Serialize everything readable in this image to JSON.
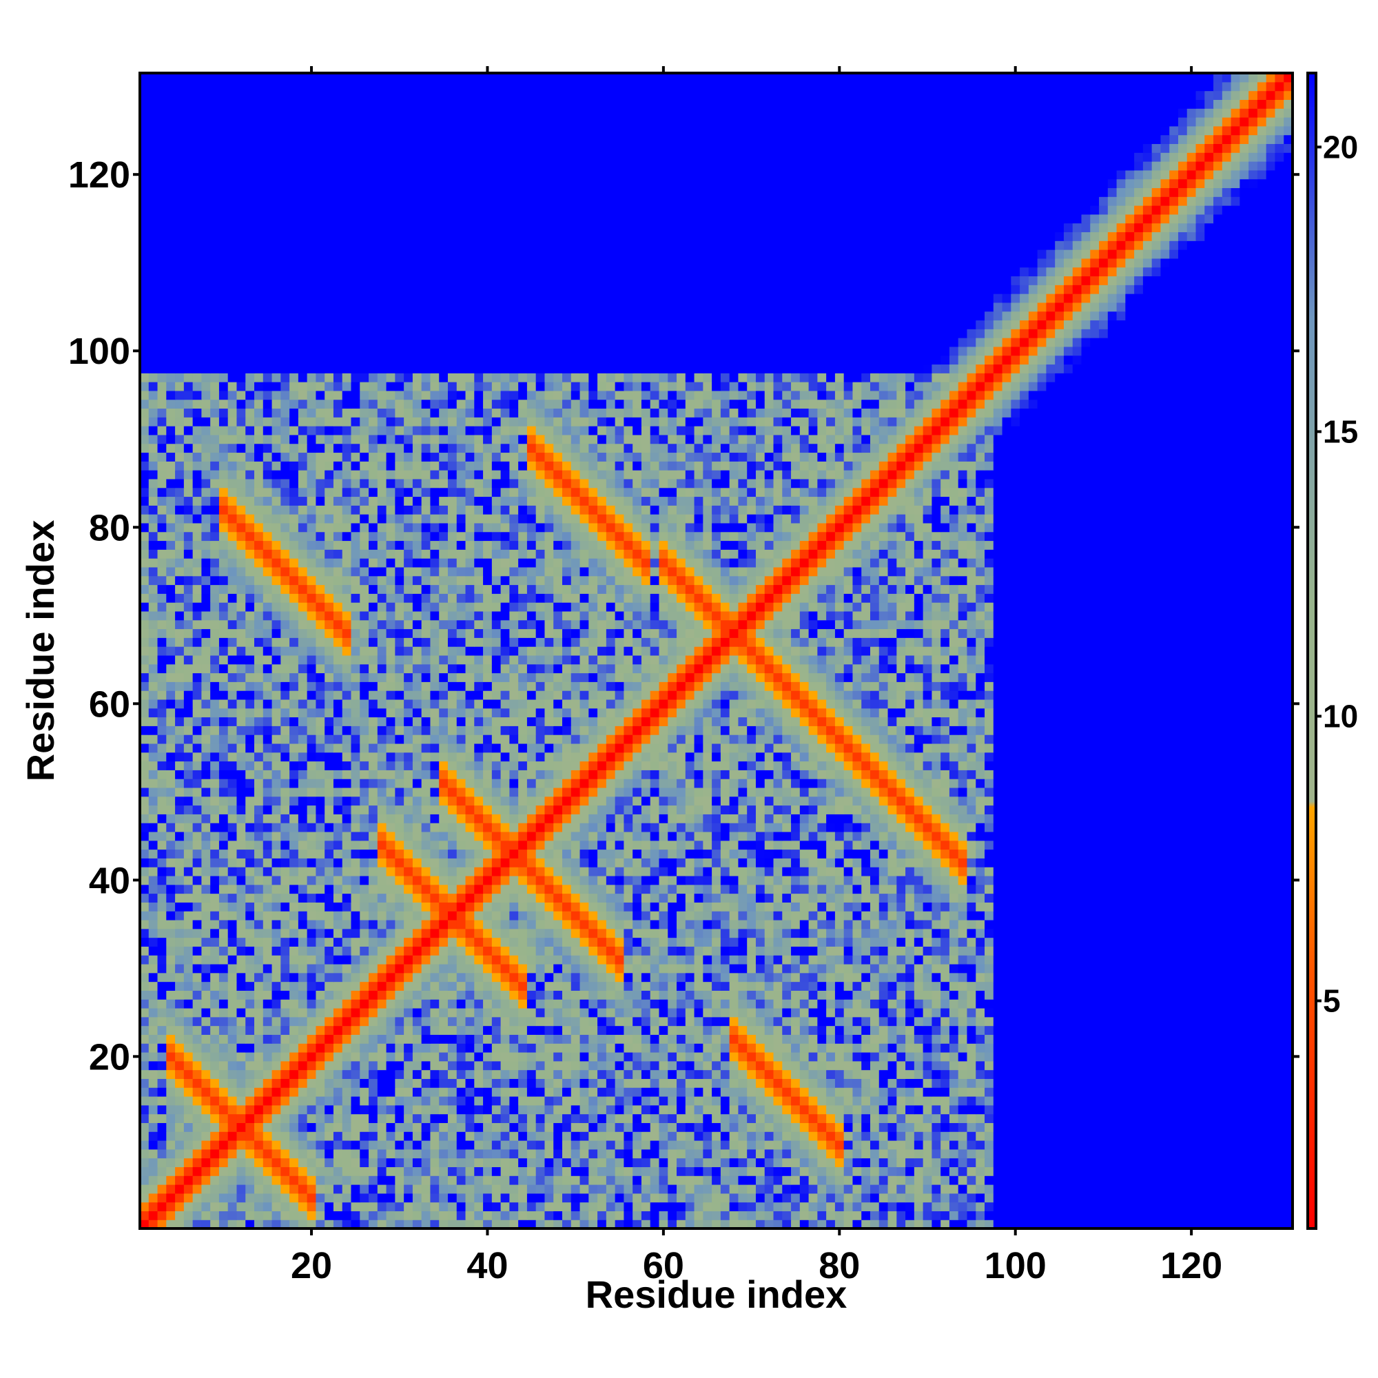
{
  "chart_data": {
    "type": "heatmap",
    "title": "",
    "xlabel": "Residue index",
    "ylabel": "Residue index",
    "xlim": [
      1,
      131
    ],
    "ylim": [
      1,
      131
    ],
    "x_ticks": [
      20,
      40,
      60,
      80,
      100,
      120
    ],
    "y_ticks": [
      20,
      40,
      60,
      80,
      100,
      120
    ],
    "colorbar": {
      "min": 1,
      "max": 21.3,
      "ticks": [
        5,
        10,
        15,
        20
      ],
      "stops": [
        {
          "value": 1.0,
          "color": "#ff0000"
        },
        {
          "value": 5.5,
          "color": "#ff5500"
        },
        {
          "value": 8.4,
          "color": "#ffa500"
        },
        {
          "value": 8.5,
          "color": "#a0b48c"
        },
        {
          "value": 12.0,
          "color": "#98b48c"
        },
        {
          "value": 17.0,
          "color": "#6e96be"
        },
        {
          "value": 21.3,
          "color": "#0000ff"
        }
      ]
    },
    "grid": false,
    "structure": {
      "description_free_values": true,
      "diagonal_contacts": {
        "i_range": [
          1,
          131
        ]
      },
      "cross_band_segments": [
        {
          "center": [
            12,
            12
          ],
          "i_range": [
            4,
            20
          ]
        },
        {
          "center": [
            36,
            36
          ],
          "i_range": [
            28,
            44
          ]
        },
        {
          "center": [
            43,
            43
          ],
          "i_range": [
            35,
            55
          ]
        },
        {
          "center": [
            68,
            68
          ],
          "i_range": [
            60,
            78
          ]
        },
        {
          "center": [
            16,
            76
          ],
          "i_range": [
            10,
            24
          ]
        },
        {
          "center": [
            73,
            17
          ],
          "i_range": [
            68,
            80
          ]
        },
        {
          "center": [
            50,
            84
          ],
          "i_range": [
            45,
            58
          ]
        },
        {
          "center": [
            86,
            50
          ],
          "i_range": [
            78,
            94
          ]
        }
      ],
      "domain_extent": {
        "x_max": 97,
        "y_max": 97
      }
    }
  }
}
